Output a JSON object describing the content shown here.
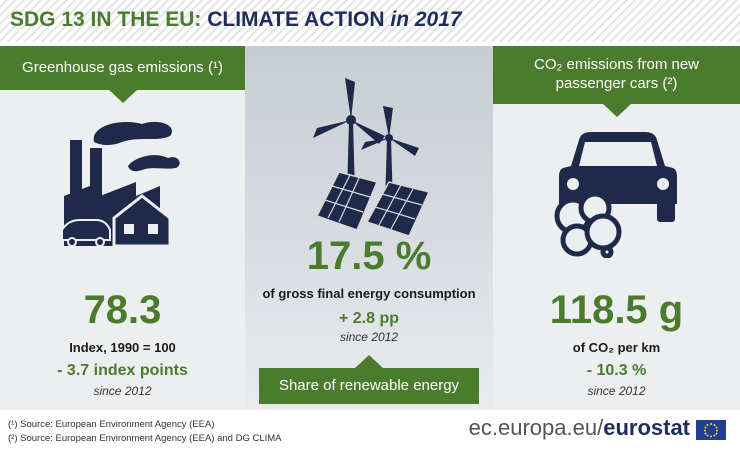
{
  "header": {
    "title_part1": "SDG 13 IN THE EU:",
    "title_part2": "CLIMATE ACTION",
    "title_part3": "in 2017"
  },
  "left": {
    "banner": "Greenhouse gas emissions (¹)",
    "value": "78.3",
    "label": "Index, 1990 = 100",
    "change": "- 3.7 index points",
    "since": "since 2012",
    "icon": "factory-icon"
  },
  "middle": {
    "value": "17.5 %",
    "label": "of gross final energy consumption",
    "change": "+ 2.8 pp",
    "since": "since 2012",
    "banner": "Share of renewable energy",
    "icon": "wind-solar-icon"
  },
  "right": {
    "banner_line1": "CO₂ emissions from new",
    "banner_line2": "passenger cars (²)",
    "value": "118.5 g",
    "label": "of CO₂ per km",
    "change": "- 10.3 %",
    "since": "since 2012",
    "icon": "car-exhaust-icon"
  },
  "footer": {
    "note1": "(¹) Source: European Environment Agency (EEA)",
    "note2": "(²) Source: European Environment Agency (EEA) and DG CLIMA",
    "brand_url": "ec.europa.eu/",
    "brand_name": "eurostat"
  },
  "colors": {
    "green": "#4b7b2d",
    "navy": "#1e2d5c",
    "panel": "#eceef0"
  }
}
